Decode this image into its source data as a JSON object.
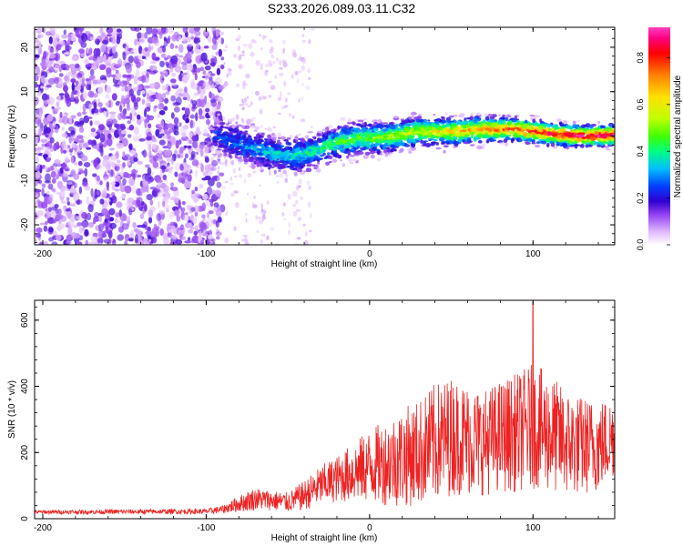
{
  "title": "S233.2026.089.03.11.C32",
  "colors": {
    "snr_line": "#ee2222",
    "axis": "#000000",
    "background": "#ffffff"
  },
  "chart_data": [
    {
      "type": "heatmap",
      "name": "spectrogram",
      "xlabel": "Height of straight line (km)",
      "ylabel": "Frequency (Hz)",
      "xlim": [
        -205,
        150
      ],
      "ylim": [
        -24.5,
        24.5
      ],
      "xticks": [
        -200,
        -100,
        0,
        100
      ],
      "yticks": [
        -20,
        -10,
        0,
        10,
        20
      ],
      "colorbar": {
        "label": "Normalized spectral amplitude",
        "range": [
          0,
          0.93
        ],
        "ticks": [
          "0.0",
          "0.2",
          "0.4",
          "0.6",
          "0.8"
        ],
        "tick_values": [
          0.0,
          0.2,
          0.4,
          0.6,
          0.8
        ],
        "colormap": [
          "#ffffff",
          "#e0b8ff",
          "#9040f0",
          "#3000d0",
          "#0040ff",
          "#00c0ff",
          "#00ff80",
          "#40ff00",
          "#c0ff00",
          "#ffe000",
          "#ff8000",
          "#ff0000",
          "#ff0080",
          "#ff40c0"
        ]
      },
      "signal_track": {
        "description_x_km": [
          -92,
          -85,
          -75,
          -65,
          -55,
          -45,
          -35,
          -25,
          -15,
          -5,
          5,
          15,
          30,
          50,
          70,
          90,
          110,
          130,
          150
        ],
        "frequency_hz": [
          0,
          -1,
          -2.5,
          -3.5,
          -4.3,
          -4.5,
          -3.5,
          -2,
          -1,
          -0.5,
          -0.5,
          0,
          1,
          1,
          1.5,
          1.5,
          0.5,
          0,
          0.2
        ]
      }
    },
    {
      "type": "line",
      "name": "snr",
      "xlabel": "Height of straight line (km)",
      "ylabel": "SNR (10 * v/v)",
      "xlim": [
        -205,
        150
      ],
      "ylim": [
        0,
        660
      ],
      "xticks": [
        -200,
        -100,
        0,
        100
      ],
      "yticks": [
        0,
        200,
        400,
        600
      ],
      "series": [
        {
          "name": "SNR",
          "envelope_x_km": [
            -205,
            -100,
            -90,
            -80,
            -70,
            -60,
            -50,
            -40,
            -30,
            -20,
            -10,
            0,
            10,
            20,
            30,
            40,
            50,
            60,
            70,
            80,
            90,
            100,
            110,
            120,
            130,
            140,
            150
          ],
          "envelope_mean": [
            20,
            22,
            28,
            45,
            60,
            55,
            50,
            70,
            100,
            120,
            140,
            160,
            170,
            185,
            200,
            230,
            250,
            240,
            230,
            250,
            260,
            280,
            260,
            230,
            220,
            220,
            250
          ],
          "envelope_spread": [
            6,
            8,
            12,
            25,
            35,
            30,
            30,
            45,
            60,
            70,
            90,
            110,
            130,
            150,
            160,
            180,
            180,
            170,
            160,
            170,
            180,
            190,
            180,
            160,
            150,
            140,
            120
          ],
          "peak": {
            "x": 100,
            "y": 655
          }
        }
      ]
    }
  ]
}
